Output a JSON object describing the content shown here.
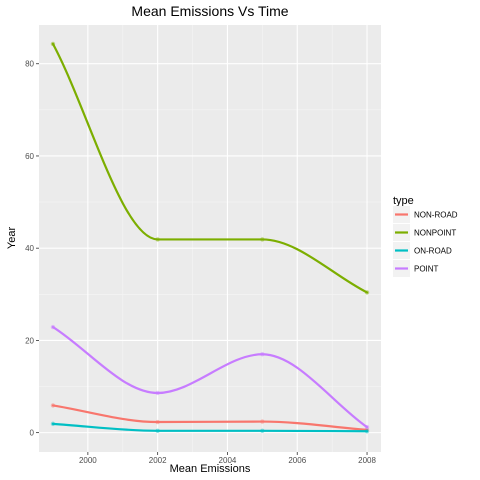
{
  "chart_data": {
    "type": "line",
    "title": "Mean Emissions Vs Time",
    "xlabel": "Mean Emissions",
    "ylabel": "Year",
    "x": [
      1999,
      2002,
      2005,
      2008
    ],
    "xlim": [
      1998.6,
      2008.4
    ],
    "ylim": [
      -4.2,
      88.4
    ],
    "xticks": [
      2000,
      2002,
      2004,
      2006,
      2008
    ],
    "yticks": [
      0,
      20,
      40,
      60,
      80
    ],
    "grid": true,
    "legend": {
      "title": "type",
      "position": "right"
    },
    "series": [
      {
        "name": "NON-ROAD",
        "color": "#F8766D",
        "values": [
          5.9,
          2.3,
          2.4,
          0.6
        ]
      },
      {
        "name": "NONPOINT",
        "color": "#7CAE00",
        "values": [
          84.3,
          41.9,
          41.9,
          30.4
        ]
      },
      {
        "name": "ON-ROAD",
        "color": "#00BFC4",
        "values": [
          1.9,
          0.4,
          0.4,
          0.3
        ]
      },
      {
        "name": "POINT",
        "color": "#C77CFF",
        "values": [
          22.9,
          8.6,
          17.0,
          1.2
        ]
      }
    ]
  }
}
